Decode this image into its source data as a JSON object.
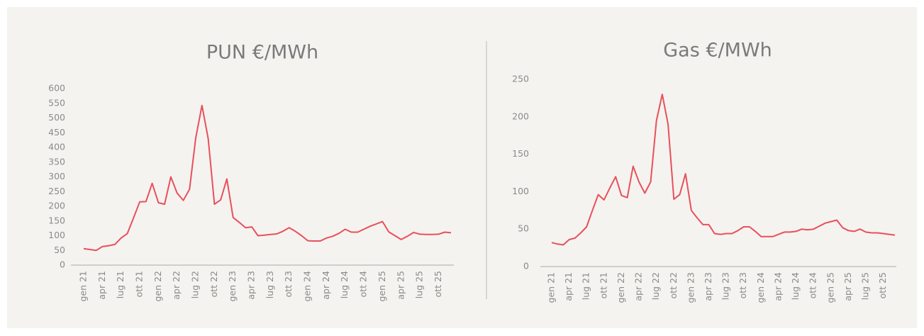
{
  "chart_data": [
    {
      "type": "line",
      "title": "PUN €/MWh",
      "categories": [
        "gen 21",
        null,
        null,
        "apr 21",
        null,
        null,
        "lug 21",
        null,
        null,
        "ott 21",
        null,
        null,
        "gen 22",
        null,
        null,
        "apr 22",
        null,
        null,
        "lug 22",
        null,
        null,
        "ott 22",
        null,
        null,
        "gen 23",
        null,
        null,
        "apr 23",
        null,
        null,
        "lug 23",
        null,
        null,
        "ott 23",
        null,
        null,
        "gen 24",
        null,
        null,
        "apr 24",
        null,
        null,
        "lug 24",
        null,
        null,
        "ott 24",
        null,
        null,
        "gen 25",
        null,
        null,
        "apr 25",
        null,
        null,
        "lug 25",
        null,
        null,
        "ott 25",
        null,
        null
      ],
      "series": [
        {
          "name": "PUN",
          "color": "#e8505b",
          "values": [
            56,
            53,
            50,
            63,
            66,
            70,
            92,
            107,
            160,
            215,
            216,
            278,
            212,
            207,
            300,
            245,
            220,
            258,
            432,
            543,
            430,
            207,
            222,
            293,
            162,
            145,
            127,
            130,
            100,
            102,
            104,
            106,
            115,
            127,
            115,
            100,
            83,
            82,
            82,
            92,
            98,
            108,
            122,
            112,
            112,
            122,
            132,
            140,
            148,
            113,
            100,
            87,
            98,
            111,
            105,
            104,
            104,
            105,
            112,
            110
          ]
        }
      ],
      "ylim": [
        0,
        600
      ],
      "yticks": [
        0,
        50,
        100,
        150,
        200,
        250,
        300,
        350,
        400,
        450,
        500,
        550,
        600
      ]
    },
    {
      "type": "line",
      "title": "Gas €/MWh",
      "categories": [
        "gen 21",
        null,
        null,
        "apr 21",
        null,
        null,
        "lug 21",
        null,
        null,
        "ott 21",
        null,
        null,
        "gen 22",
        null,
        null,
        "apr 22",
        null,
        null,
        "lug 22",
        null,
        null,
        "ott 22",
        null,
        null,
        "gen 23",
        null,
        null,
        "apr 23",
        null,
        null,
        "lug 23",
        null,
        null,
        "ott 23",
        null,
        null,
        "gen 24",
        null,
        null,
        "apr 24",
        null,
        null,
        "lug 24",
        null,
        null,
        "ott 24",
        null,
        null,
        "gen 25",
        null,
        null,
        "apr 25",
        null,
        null,
        "lug 25",
        null,
        null,
        "ott 25",
        null,
        null
      ],
      "series": [
        {
          "name": "Gas",
          "color": "#e8505b",
          "values": [
            32,
            30,
            29,
            36,
            38,
            45,
            53,
            75,
            96,
            89,
            105,
            120,
            95,
            92,
            134,
            113,
            98,
            113,
            195,
            230,
            190,
            90,
            96,
            124,
            75,
            65,
            56,
            56,
            44,
            43,
            44,
            44,
            48,
            53,
            53,
            47,
            40,
            40,
            40,
            43,
            46,
            46,
            47,
            50,
            49,
            50,
            54,
            58,
            60,
            62,
            52,
            48,
            47,
            50,
            46,
            45,
            45,
            44,
            43,
            42
          ]
        }
      ],
      "ylim": [
        0,
        250
      ],
      "yticks": [
        0,
        50,
        100,
        150,
        200,
        250
      ]
    }
  ]
}
